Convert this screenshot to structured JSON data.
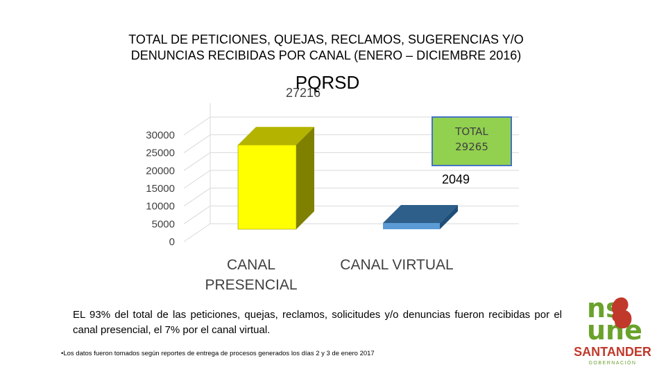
{
  "title": {
    "line1": "TOTAL DE PETICIONES, QUEJAS, RECLAMOS, SUGERENCIAS Y/O",
    "line2": "DENUNCIAS RECIBIDAS POR CANAL (ENERO – DICIEMBRE 2016)"
  },
  "chart_data": {
    "type": "bar",
    "title": "PQRSD",
    "categories": [
      "CANAL PRESENCIAL",
      "CANAL VIRTUAL"
    ],
    "values": [
      27216,
      2049
    ],
    "data_labels": [
      "27216",
      "2049"
    ],
    "yticks": [
      "0",
      "5000",
      "10000",
      "15000",
      "20000",
      "25000",
      "30000"
    ],
    "ylim": [
      0,
      30000
    ],
    "grid": true,
    "style": "3d",
    "colors": {
      "presencial_front": "#ffff00",
      "presencial_top": "#b3b300",
      "presencial_side": "#808000",
      "virtual_front": "#5b9bd5",
      "virtual_top": "#2e5f8a",
      "virtual_side": "#1f4e79",
      "grid": "#d9d9d9"
    }
  },
  "total_box": {
    "line1": "TOTAL",
    "line2": "29265",
    "bg": "#92d050",
    "border": "#4472c4"
  },
  "note": "EL 93% del total de las peticiones, quejas, reclamos, solicitudes y/o denuncias fueron recibidas por el canal presencial, el 7% por el canal virtual.",
  "footnote": "•Los datos fueron tomados según reportes de entrega de procesos generados los días 2 y 3 de enero 2017",
  "logo": {
    "line1": "ns",
    "line2": "une",
    "brand": "SANTANDER",
    "sub": "GOBERNACIÓN",
    "colors": {
      "green": "#6aa22c",
      "red": "#c0392b"
    }
  }
}
